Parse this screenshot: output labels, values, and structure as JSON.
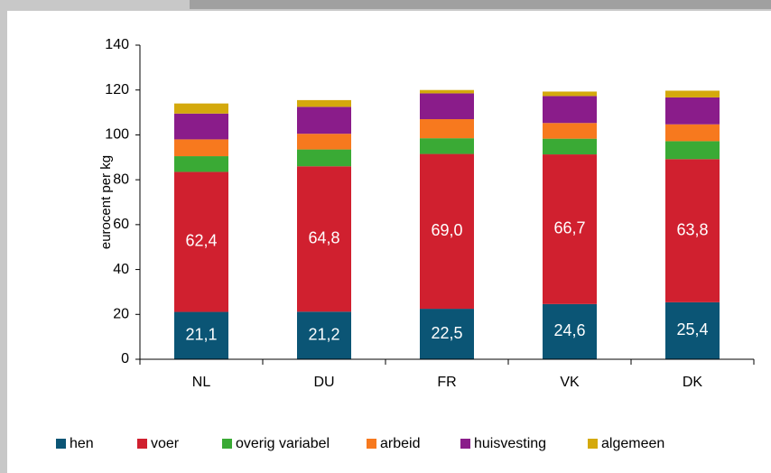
{
  "chart_data": {
    "type": "bar",
    "stacked": true,
    "ylabel": "eurocent per kg",
    "categories": [
      "NL",
      "DU",
      "FR",
      "VK",
      "DK"
    ],
    "series": [
      {
        "name": "hen",
        "color": "#0b5575",
        "values": [
          21.1,
          21.2,
          22.5,
          24.6,
          25.4
        ],
        "value_labels": [
          "21,1",
          "21,2",
          "22,5",
          "24,6",
          "25,4"
        ]
      },
      {
        "name": "voer",
        "color": "#d0202f",
        "values": [
          62.4,
          64.8,
          69.0,
          66.7,
          63.8
        ],
        "value_labels": [
          "62,4",
          "64,8",
          "69,0",
          "66,7",
          "63,8"
        ]
      },
      {
        "name": "overig variabel",
        "color": "#3aaa35",
        "values": [
          7,
          7.5,
          7,
          7,
          8
        ]
      },
      {
        "name": "arbeid",
        "color": "#f7791e",
        "values": [
          7.5,
          7,
          8.5,
          7,
          7.5
        ]
      },
      {
        "name": "huisvesting",
        "color": "#8a1c8a",
        "values": [
          11.5,
          12,
          11.5,
          12,
          12
        ]
      },
      {
        "name": "algemeen",
        "color": "#d4a90c",
        "values": [
          4.5,
          3,
          1.5,
          2,
          3
        ]
      }
    ],
    "ylim": [
      0,
      140
    ],
    "yticks": [
      0,
      20,
      40,
      60,
      80,
      100,
      120,
      140
    ],
    "grid": false,
    "legend": "bottom"
  }
}
